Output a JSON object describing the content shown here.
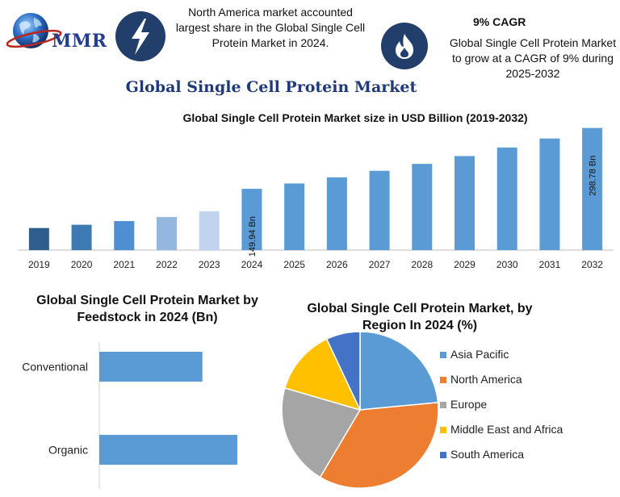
{
  "header": {
    "logo_text": "MMR",
    "info_left": "North America market accounted largest share in the Global Single Cell Protein Market in 2024.",
    "info_right_title": "9% CAGR",
    "info_right": "Global Single Cell Protein Market to grow at a CAGR of 9% during 2025-2032",
    "icons": [
      "lightning-icon",
      "flame-icon",
      "globe-icon"
    ]
  },
  "main_title": "Global Single Cell Protein Market",
  "chart_data": [
    {
      "type": "bar",
      "title": "Global Single Cell Protein Market size in USD Billion (2019-2032)",
      "categories": [
        "2019",
        "2020",
        "2021",
        "2022",
        "2023",
        "2024",
        "2025",
        "2026",
        "2027",
        "2028",
        "2029",
        "2030",
        "2031",
        "2032"
      ],
      "values": [
        54,
        62,
        71,
        81,
        95,
        149.94,
        163,
        178,
        194,
        211,
        230,
        251,
        273,
        298.78
      ],
      "colors": [
        "#2e5f8c",
        "#3d79b3",
        "#4f8ed0",
        "#93b7df",
        "#c0d4ef",
        "#5b9bd5",
        "#5b9bd5",
        "#5b9bd5",
        "#5b9bd5",
        "#5b9bd5",
        "#5b9bd5",
        "#5b9bd5",
        "#5b9bd5",
        "#5b9bd5"
      ],
      "data_labels": {
        "2024": "149.94 Bn",
        "2032": "298.78 Bn"
      },
      "ylim": [
        0,
        300
      ]
    },
    {
      "type": "bar",
      "orientation": "horizontal",
      "title": "Global Single Cell Protein Market by Feedstock in 2024 (Bn)",
      "categories": [
        "Conventional",
        "Organic"
      ],
      "values": [
        62,
        83
      ],
      "color": "#5b9bd5",
      "xlim": [
        0,
        100
      ]
    },
    {
      "type": "pie",
      "title": "Global Single Cell Protein Market, by Region In 2024 (%)",
      "categories": [
        "Asia Pacific",
        "North America",
        "Europe",
        "Middle East and Africa",
        "South America"
      ],
      "values": [
        23.5,
        35,
        21,
        13.5,
        7
      ],
      "colors": [
        "#5b9bd5",
        "#ed7d31",
        "#a5a5a5",
        "#ffc000",
        "#4472c4"
      ],
      "legend_position": "right"
    }
  ]
}
